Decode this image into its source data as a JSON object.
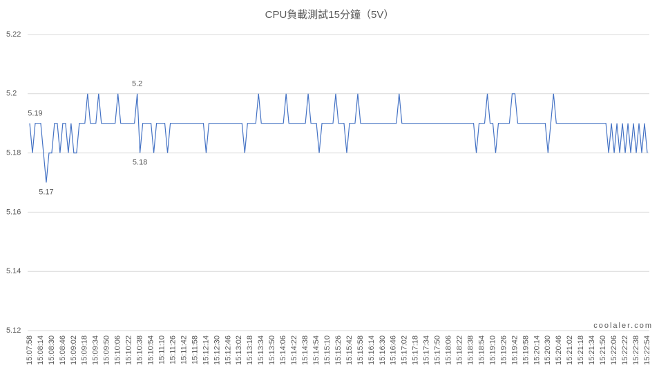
{
  "chart_data": {
    "type": "line",
    "title": "CPU負載測試15分鐘（5V）",
    "watermark": "coolaler.com",
    "ylim": [
      5.12,
      5.22
    ],
    "yticks": [
      5.12,
      5.14,
      5.16,
      5.18,
      5.2,
      5.22
    ],
    "grid": true,
    "categories": [
      "15:07:58",
      null,
      null,
      null,
      "15:08:14",
      null,
      null,
      null,
      "15:08:30",
      null,
      null,
      null,
      "15:08:46",
      null,
      null,
      null,
      "15:09:02",
      null,
      null,
      null,
      "15:09:18",
      null,
      null,
      null,
      "15:09:34",
      null,
      null,
      null,
      "15:09:50",
      null,
      null,
      null,
      "15:10:06",
      null,
      null,
      null,
      "15:10:22",
      null,
      null,
      null,
      "15:10:38",
      null,
      null,
      null,
      "15:10:54",
      null,
      null,
      null,
      "15:11:10",
      null,
      null,
      null,
      "15:11:26",
      null,
      null,
      null,
      "15:11:42",
      null,
      null,
      null,
      "15:11:58",
      null,
      null,
      null,
      "15:12:14",
      null,
      null,
      null,
      "15:12:30",
      null,
      null,
      null,
      "15:12:46",
      null,
      null,
      null,
      "15:13:02",
      null,
      null,
      null,
      "15:13:18",
      null,
      null,
      null,
      "15:13:34",
      null,
      null,
      null,
      "15:13:50",
      null,
      null,
      null,
      "15:14:06",
      null,
      null,
      null,
      "15:14:22",
      null,
      null,
      null,
      "15:14:38",
      null,
      null,
      null,
      "15:14:54",
      null,
      null,
      null,
      "15:15:10",
      null,
      null,
      null,
      "15:15:26",
      null,
      null,
      null,
      "15:15:42",
      null,
      null,
      null,
      "15:15:58",
      null,
      null,
      null,
      "15:16:14",
      null,
      null,
      null,
      "15:16:30",
      null,
      null,
      null,
      "15:16:46",
      null,
      null,
      null,
      "15:17:02",
      null,
      null,
      null,
      "15:17:18",
      null,
      null,
      null,
      "15:17:34",
      null,
      null,
      null,
      "15:17:50",
      null,
      null,
      null,
      "15:18:06",
      null,
      null,
      null,
      "15:18:22",
      null,
      null,
      null,
      "15:18:38",
      null,
      null,
      null,
      "15:18:54",
      null,
      null,
      null,
      "15:19:10",
      null,
      null,
      null,
      "15:19:26",
      null,
      null,
      null,
      "15:19:42",
      null,
      null,
      null,
      "15:19:58",
      null,
      null,
      null,
      "15:20:14",
      null,
      null,
      null,
      "15:20:30",
      null,
      null,
      null,
      "15:20:46",
      null,
      null,
      null,
      "15:21:02",
      null,
      null,
      null,
      "15:21:18",
      null,
      null,
      null,
      "15:21:34",
      null,
      null,
      null,
      "15:21:50",
      null,
      null,
      null,
      "15:22:06",
      null,
      null,
      null,
      "15:22:22",
      null,
      null,
      null,
      "15:22:38",
      null,
      null,
      null,
      "15:22:54"
    ],
    "series": [
      {
        "color": "#4472c4",
        "values": [
          5.19,
          5.18,
          5.19,
          5.19,
          5.19,
          5.18,
          5.17,
          5.18,
          5.18,
          5.19,
          5.19,
          5.18,
          5.19,
          5.19,
          5.18,
          5.19,
          5.18,
          5.18,
          5.19,
          5.19,
          5.19,
          5.2,
          5.19,
          5.19,
          5.19,
          5.2,
          5.19,
          5.19,
          5.19,
          5.19,
          5.19,
          5.19,
          5.2,
          5.19,
          5.19,
          5.19,
          5.19,
          5.19,
          5.19,
          5.2,
          5.18,
          5.19,
          5.19,
          5.19,
          5.19,
          5.18,
          5.19,
          5.19,
          5.19,
          5.19,
          5.18,
          5.19,
          5.19,
          5.19,
          5.19,
          5.19,
          5.19,
          5.19,
          5.19,
          5.19,
          5.19,
          5.19,
          5.19,
          5.19,
          5.18,
          5.19,
          5.19,
          5.19,
          5.19,
          5.19,
          5.19,
          5.19,
          5.19,
          5.19,
          5.19,
          5.19,
          5.19,
          5.19,
          5.18,
          5.19,
          5.19,
          5.19,
          5.19,
          5.2,
          5.19,
          5.19,
          5.19,
          5.19,
          5.19,
          5.19,
          5.19,
          5.19,
          5.19,
          5.2,
          5.19,
          5.19,
          5.19,
          5.19,
          5.19,
          5.19,
          5.19,
          5.2,
          5.19,
          5.19,
          5.19,
          5.18,
          5.19,
          5.19,
          5.19,
          5.19,
          5.19,
          5.2,
          5.19,
          5.19,
          5.19,
          5.18,
          5.19,
          5.19,
          5.19,
          5.2,
          5.19,
          5.19,
          5.19,
          5.19,
          5.19,
          5.19,
          5.19,
          5.19,
          5.19,
          5.19,
          5.19,
          5.19,
          5.19,
          5.19,
          5.2,
          5.19,
          5.19,
          5.19,
          5.19,
          5.19,
          5.19,
          5.19,
          5.19,
          5.19,
          5.19,
          5.19,
          5.19,
          5.19,
          5.19,
          5.19,
          5.19,
          5.19,
          5.19,
          5.19,
          5.19,
          5.19,
          5.19,
          5.19,
          5.19,
          5.19,
          5.19,
          5.19,
          5.18,
          5.19,
          5.19,
          5.19,
          5.2,
          5.19,
          5.19,
          5.18,
          5.19,
          5.19,
          5.19,
          5.19,
          5.19,
          5.2,
          5.2,
          5.19,
          5.19,
          5.19,
          5.19,
          5.19,
          5.19,
          5.19,
          5.19,
          5.19,
          5.19,
          5.19,
          5.18,
          5.19,
          5.2,
          5.19,
          5.19,
          5.19,
          5.19,
          5.19,
          5.19,
          5.19,
          5.19,
          5.19,
          5.19,
          5.19,
          5.19,
          5.19,
          5.19,
          5.19,
          5.19,
          5.19,
          5.19,
          5.19,
          5.18,
          5.19,
          5.18,
          5.19,
          5.18,
          5.19,
          5.18,
          5.19,
          5.18,
          5.19,
          5.18,
          5.19,
          5.18,
          5.19,
          5.18
        ],
        "value_labels": [
          null,
          null,
          "5.19",
          null,
          null,
          null,
          "5.17",
          null,
          null,
          null,
          null,
          null,
          null,
          null,
          null,
          null,
          null,
          null,
          null,
          null,
          null,
          null,
          null,
          null,
          null,
          null,
          null,
          null,
          null,
          null,
          null,
          null,
          null,
          null,
          null,
          null,
          null,
          null,
          null,
          "5.2",
          "5.18",
          null,
          null,
          null,
          null,
          null,
          null,
          null,
          null,
          null,
          null,
          null,
          null,
          null,
          null,
          null,
          null,
          null,
          null,
          null,
          null,
          null,
          null,
          null,
          null,
          null,
          null,
          null,
          null,
          null,
          null,
          null,
          null,
          null,
          null,
          null,
          null,
          null,
          null,
          null,
          null,
          null,
          null,
          null,
          null,
          null,
          null,
          null,
          null,
          null,
          null,
          null,
          null,
          null,
          null,
          null,
          null,
          null,
          null,
          null,
          null,
          null,
          null,
          null,
          null,
          null,
          null,
          null,
          null,
          null,
          null,
          null,
          null,
          null,
          null,
          null,
          null,
          null,
          null,
          null,
          null,
          null,
          null,
          null,
          null,
          null,
          null,
          null,
          null,
          null,
          null,
          null,
          null,
          null,
          null,
          null,
          null,
          null,
          null,
          null,
          null,
          null,
          null,
          null,
          null,
          null,
          null,
          null,
          null,
          null,
          null,
          null,
          null,
          null,
          null,
          null,
          null,
          null,
          null,
          null,
          null,
          null,
          null,
          null,
          null,
          null,
          null,
          null,
          null,
          null,
          null,
          null,
          null,
          null,
          null,
          null,
          null,
          null,
          null,
          null,
          null,
          null,
          null,
          null,
          null,
          null,
          null,
          null,
          null,
          null,
          null,
          null,
          null,
          null,
          null,
          null,
          null,
          null,
          null,
          null,
          null,
          null,
          null,
          null,
          null,
          null,
          null,
          null,
          null,
          null,
          null,
          null,
          null,
          null,
          null,
          null,
          null,
          null,
          null,
          null,
          null,
          null,
          null,
          null,
          null
        ]
      }
    ]
  }
}
